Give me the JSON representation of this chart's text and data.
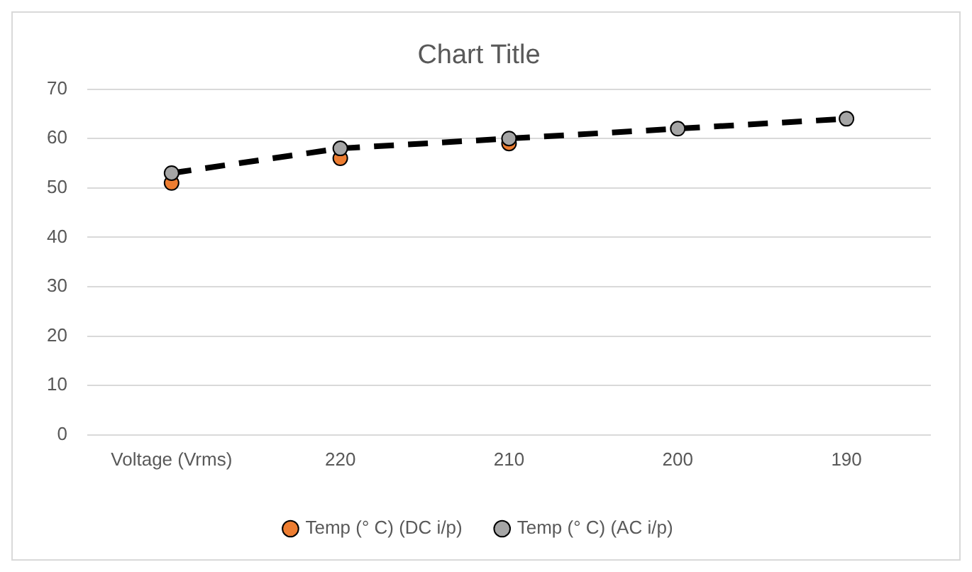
{
  "chart_data": {
    "type": "line",
    "title": "Chart Title",
    "categories": [
      "Voltage (Vrms)",
      "220",
      "210",
      "200",
      "190"
    ],
    "series": [
      {
        "name": "Temp (° C) (DC i/p)",
        "type": "scatter",
        "color": "#ed7d31",
        "x": [
          "Voltage (Vrms)",
          "220",
          "210",
          "200",
          "190"
        ],
        "values": [
          51,
          56,
          59,
          null,
          null
        ]
      },
      {
        "name": "Temp (° C) (AC i/p)",
        "type": "line",
        "color": "#000000",
        "colors": [
          "#a5a5a5",
          "#a5a5a5",
          "#a5a5a5",
          "#a5a5a5",
          "#a5a5a5"
        ],
        "line_style": "dashed",
        "values": [
          53,
          58,
          60,
          62,
          64
        ]
      }
    ],
    "ylim": [
      0,
      70
    ],
    "yticks": [
      0,
      10,
      20,
      30,
      40,
      50,
      60,
      70
    ],
    "grid": "y",
    "legend": "bottom",
    "marker": "circle"
  }
}
